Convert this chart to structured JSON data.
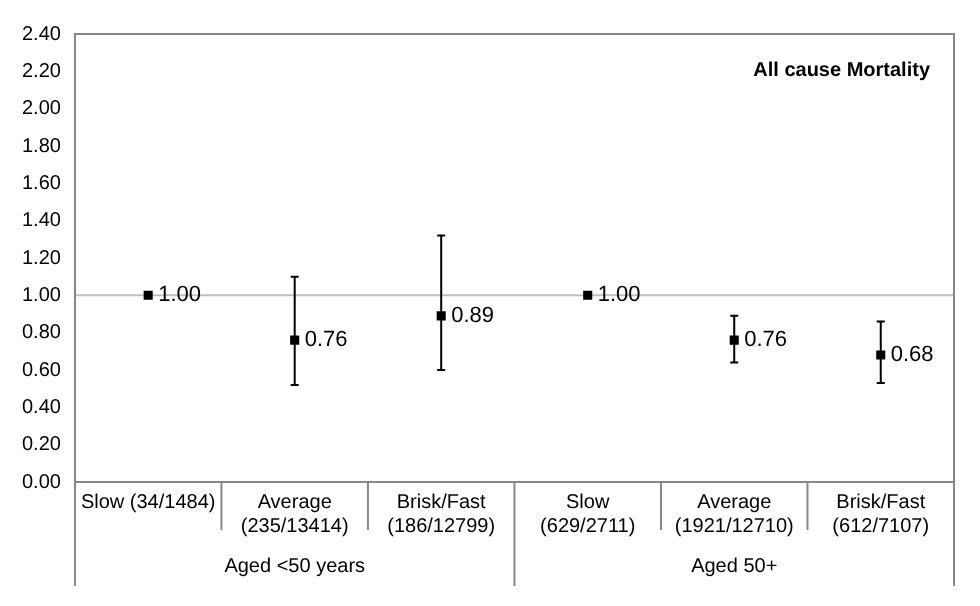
{
  "chart_data": {
    "type": "scatter",
    "title": "All cause Mortality",
    "categories": [
      "Slow (34/1484)",
      "Average (235/13414)",
      "Brisk/Fast (186/12799)",
      "Slow (629/2711)",
      "Average (1921/12710)",
      "Brisk/Fast (612/7107)"
    ],
    "values": [
      1,
      0.76,
      0.89,
      1,
      0.76,
      0.68
    ],
    "errors": [
      null,
      [
        0.52,
        1.1
      ],
      [
        0.6,
        1.32
      ],
      null,
      [
        0.64,
        0.89
      ],
      [
        0.53,
        0.86
      ]
    ],
    "value_labels": [
      "1.00",
      "0.76",
      "0.89",
      "1.00",
      "0.76",
      "0.68"
    ],
    "color": "#000000",
    "marker": "square",
    "ylim": [
      0,
      2.4
    ],
    "yticks": [
      {
        "value": 0,
        "label": "0.00"
      },
      {
        "value": 0.2,
        "label": "0.20"
      },
      {
        "value": 0.4,
        "label": "0.40"
      },
      {
        "value": 0.6,
        "label": "0.60"
      },
      {
        "value": 0.8,
        "label": "0.80"
      },
      {
        "value": 1,
        "label": "1.00"
      },
      {
        "value": 1.2,
        "label": "1.20"
      },
      {
        "value": 1.4,
        "label": "1.40"
      },
      {
        "value": 1.6,
        "label": "1.60"
      },
      {
        "value": 1.8,
        "label": "1.80"
      },
      {
        "value": 2,
        "label": "2.00"
      },
      {
        "value": 2.2,
        "label": "2.20"
      },
      {
        "value": 2.4,
        "label": "2.40"
      }
    ],
    "ref_lines": [
      {
        "axis": "y",
        "value": 1,
        "color": "#c0c0c0"
      }
    ],
    "annotations": [
      "Aged <50 years",
      "Aged 50+"
    ],
    "grid": false,
    "legend": false
  }
}
